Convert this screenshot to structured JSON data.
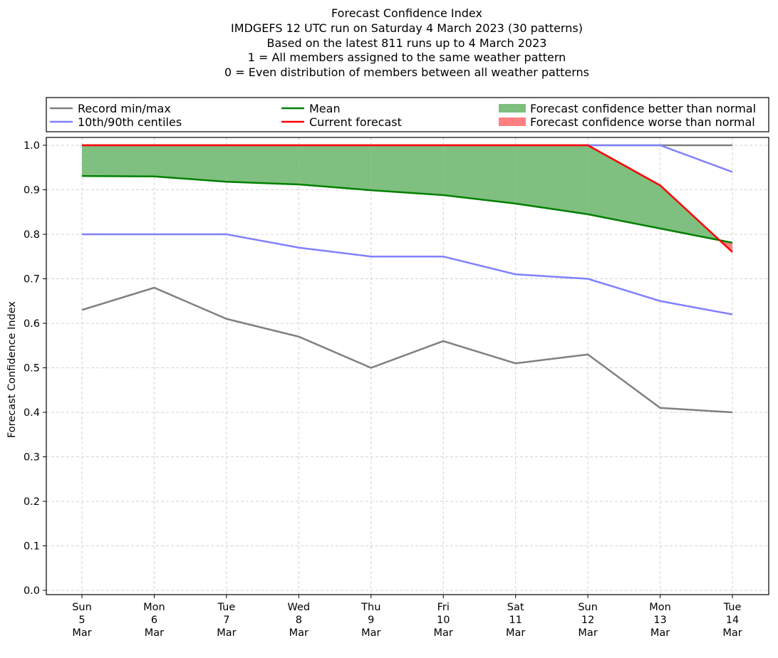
{
  "chart_data": {
    "type": "line",
    "title_lines": [
      "Forecast Confidence Index",
      "IMDGEFS 12 UTC run on Saturday 4 March 2023 (30 patterns)",
      "Based on the latest 811 runs up to 4 March 2023",
      "1 = All members assigned to the same weather pattern",
      "0 = Even distribution of members between all weather patterns"
    ],
    "ylabel": "Forecast Confidence Index",
    "xlabel": "",
    "ylim": [
      -0.01,
      1.01
    ],
    "yticks": [
      "0.0",
      "0.1",
      "0.2",
      "0.3",
      "0.4",
      "0.5",
      "0.6",
      "0.7",
      "0.8",
      "0.9",
      "1.0"
    ],
    "grid": true,
    "categories": [
      [
        "Sun",
        "5",
        "Mar"
      ],
      [
        "Mon",
        "6",
        "Mar"
      ],
      [
        "Tue",
        "7",
        "Mar"
      ],
      [
        "Wed",
        "8",
        "Mar"
      ],
      [
        "Thu",
        "9",
        "Mar"
      ],
      [
        "Fri",
        "10",
        "Mar"
      ],
      [
        "Sat",
        "11",
        "Mar"
      ],
      [
        "Sun",
        "12",
        "Mar"
      ],
      [
        "Mon",
        "13",
        "Mar"
      ],
      [
        "Tue",
        "14",
        "Mar"
      ]
    ],
    "series": [
      {
        "name": "Record min",
        "color": "#808080",
        "values": [
          0.63,
          0.68,
          0.61,
          0.57,
          0.5,
          0.56,
          0.51,
          0.53,
          0.41,
          0.4
        ]
      },
      {
        "name": "Record max",
        "color": "#808080",
        "values": [
          1.0,
          1.0,
          1.0,
          1.0,
          1.0,
          1.0,
          1.0,
          1.0,
          1.0,
          1.0
        ]
      },
      {
        "name": "10th centile",
        "color": "#8080ff",
        "values": [
          0.8,
          0.8,
          0.8,
          0.77,
          0.75,
          0.75,
          0.71,
          0.7,
          0.65,
          0.62
        ]
      },
      {
        "name": "90th centile",
        "color": "#8080ff",
        "values": [
          1.0,
          1.0,
          1.0,
          1.0,
          1.0,
          1.0,
          1.0,
          1.0,
          1.0,
          0.94
        ]
      },
      {
        "name": "Mean",
        "color": "#008000",
        "values": [
          0.931,
          0.93,
          0.918,
          0.912,
          0.899,
          0.888,
          0.869,
          0.845,
          0.813,
          0.781
        ]
      },
      {
        "name": "Current forecast",
        "color": "#ff0000",
        "values": [
          1.0,
          1.0,
          1.0,
          1.0,
          1.0,
          1.0,
          1.0,
          1.0,
          0.91,
          0.76
        ]
      }
    ],
    "fill": {
      "better_color": "#7fbf7f",
      "worse_color": "#ff8080"
    },
    "legend": {
      "placement": "top",
      "entries": [
        {
          "label": "Record min/max",
          "color": "#808080",
          "kind": "line"
        },
        {
          "label": "10th/90th centiles",
          "color": "#8080ff",
          "kind": "line"
        },
        {
          "label": "Mean",
          "color": "#008000",
          "kind": "line"
        },
        {
          "label": "Current forecast",
          "color": "#ff0000",
          "kind": "line"
        },
        {
          "label": "Forecast confidence better than normal",
          "color": "#7fbf7f",
          "kind": "patch"
        },
        {
          "label": "Forecast confidence worse than normal",
          "color": "#ff8080",
          "kind": "patch"
        }
      ]
    }
  }
}
